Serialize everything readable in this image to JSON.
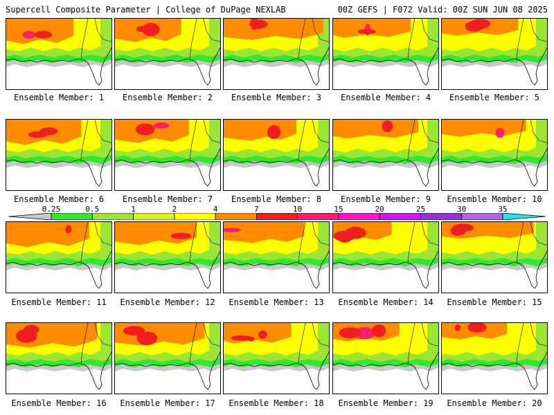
{
  "header": {
    "left_title": "Supercell Composite Parameter | College of DuPage NEXLAB",
    "right_title": "00Z GEFS | F072 Valid: 00Z SUN JUN 08 2025"
  },
  "member_label_prefix": "Ensemble Member: ",
  "members": [
    {
      "label": "Ensemble Member: 1"
    },
    {
      "label": "Ensemble Member: 2"
    },
    {
      "label": "Ensemble Member: 3"
    },
    {
      "label": "Ensemble Member: 4"
    },
    {
      "label": "Ensemble Member: 5"
    },
    {
      "label": "Ensemble Member: 6"
    },
    {
      "label": "Ensemble Member: 7"
    },
    {
      "label": "Ensemble Member: 8"
    },
    {
      "label": "Ensemble Member: 9"
    },
    {
      "label": "Ensemble Member: 10"
    },
    {
      "label": "Ensemble Member: 11"
    },
    {
      "label": "Ensemble Member: 12"
    },
    {
      "label": "Ensemble Member: 13"
    },
    {
      "label": "Ensemble Member: 14"
    },
    {
      "label": "Ensemble Member: 15"
    },
    {
      "label": "Ensemble Member: 16"
    },
    {
      "label": "Ensemble Member: 17"
    },
    {
      "label": "Ensemble Member: 18"
    },
    {
      "label": "Ensemble Member: 19"
    },
    {
      "label": "Ensemble Member: 20"
    }
  ],
  "colorbar": {
    "ticks": [
      "0.25",
      "0.5",
      "1",
      "2",
      "4",
      "7",
      "10",
      "15",
      "20",
      "25",
      "30",
      "35"
    ],
    "colors": [
      "#c8c8c8",
      "#32e632",
      "#9be632",
      "#dcf01e",
      "#ffff00",
      "#ff8c00",
      "#f01e1e",
      "#ff1e6e",
      "#ff14c8",
      "#d214f0",
      "#9632dc",
      "#b464e6",
      "#1ee6f0"
    ]
  }
}
